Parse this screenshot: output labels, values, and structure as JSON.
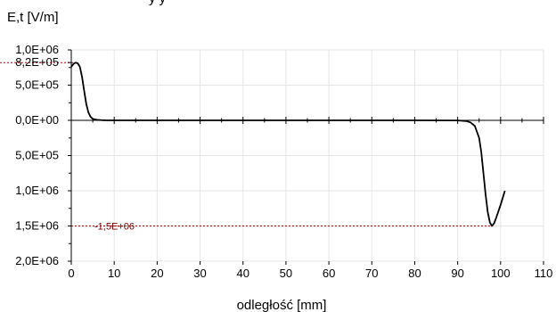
{
  "chart_data": {
    "type": "line",
    "partial_title": "y y",
    "ylabel": "E,t [V/m]",
    "xlabel": "odległość [mm]",
    "xlim": [
      0,
      110
    ],
    "ylim": [
      -2000000,
      1000000
    ],
    "x_ticks": [
      0,
      10,
      20,
      30,
      40,
      50,
      60,
      70,
      80,
      90,
      100,
      110
    ],
    "x_tick_labels": [
      "0",
      "10",
      "20",
      "30",
      "40",
      "50",
      "60",
      "70",
      "80",
      "90",
      "100",
      "110"
    ],
    "y_ticks": [
      {
        "value": 1000000,
        "label": "1,0E+06"
      },
      {
        "value": 820000,
        "label": "8,2E+05"
      },
      {
        "value": 500000,
        "label": "5,0E+05"
      },
      {
        "value": 0,
        "label": "0,0E+00"
      },
      {
        "value": -500000,
        "label": "5,0E+05"
      },
      {
        "value": -1000000,
        "label": "1,0E+06"
      },
      {
        "value": -1500000,
        "label": "1,5E+06"
      },
      {
        "value": -2000000,
        "label": "2,0E+06"
      }
    ],
    "grid": true,
    "series": [
      {
        "color": "#000000",
        "x": [
          0,
          0.5,
          1,
          1.5,
          2,
          2.5,
          3,
          3.5,
          4,
          4.5,
          5,
          6,
          7,
          8,
          10,
          20,
          40,
          60,
          80,
          90,
          92,
          93,
          94,
          95,
          95.5,
          96,
          96.5,
          97,
          97.5,
          98,
          98.5,
          99,
          100,
          101
        ],
        "y": [
          760000,
          800000,
          820000,
          810000,
          760000,
          620000,
          420000,
          230000,
          110000,
          50000,
          20000,
          8000,
          3000,
          1000,
          0,
          0,
          0,
          0,
          0,
          -2000,
          -10000,
          -30000,
          -80000,
          -250000,
          -450000,
          -750000,
          -1050000,
          -1300000,
          -1450000,
          -1500000,
          -1460000,
          -1380000,
          -1200000,
          -1000000
        ]
      }
    ],
    "annotations": [
      {
        "text": "-1,5E+06",
        "x": 98,
        "y": -1500000,
        "line_color": "#c00000",
        "style": "dotted"
      },
      {
        "text": "8,2E+05",
        "x": 1,
        "y": 820000,
        "line_color": "#c00000",
        "style": "dotted"
      }
    ]
  }
}
